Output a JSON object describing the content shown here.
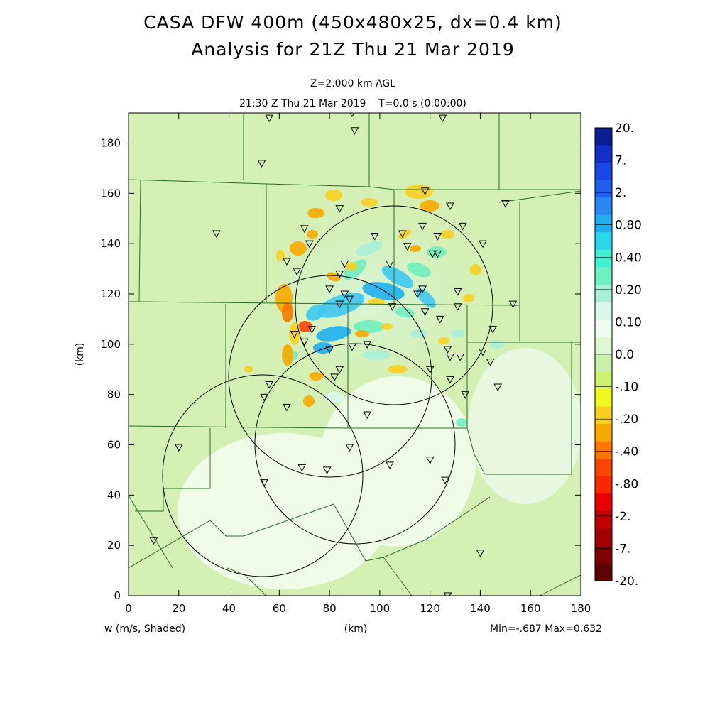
{
  "chart_data": {
    "type": "heatmap",
    "title_lines": [
      "CASA DFW 400m (450x480x25, dx=0.4 km)",
      "Analysis for 21Z Thu 21 Mar 2019"
    ],
    "subtitle_lines": [
      "Z=2.000 km AGL",
      "21:30 Z Thu 21 Mar 2019    T=0.0 s (0:00:00)"
    ],
    "xlabel": "(km)",
    "ylabel": "(km)",
    "field_label": "w (m/s, Shaded)",
    "minmax_label": "Min=-.687 Max=0.632",
    "xlim": [
      0,
      180
    ],
    "ylim": [
      0,
      192
    ],
    "x_ticks": [
      0,
      20,
      40,
      60,
      80,
      100,
      120,
      140,
      160,
      180
    ],
    "y_ticks": [
      0,
      20,
      40,
      60,
      80,
      100,
      120,
      140,
      160,
      180
    ],
    "colorbar": {
      "labels": [
        "20.",
        "7.",
        "2.",
        "0.80",
        "0.40",
        "0.20",
        "0.10",
        "0.0",
        "-.10",
        "-.20",
        "-.40",
        "-.80",
        "-2.",
        "-7.",
        "-20."
      ],
      "colors": [
        "#0a1f8f",
        "#1030c8",
        "#1848e8",
        "#2060f0",
        "#2888f0",
        "#20b0f0",
        "#28d8e8",
        "#40f0d0",
        "#70f0c0",
        "#a8f0d8",
        "#d8f8ec",
        "#f0fcf0",
        "#e0f8d0",
        "#c8f0a8",
        "#d0f070",
        "#f0f820",
        "#f8d020",
        "#f8a800",
        "#f87800",
        "#f84800",
        "#f82800",
        "#e80000",
        "#c00000",
        "#a00000",
        "#800000",
        "#600000"
      ]
    },
    "radar_range_rings": [
      {
        "center": [
          105.5,
          115.5
        ],
        "radius": 39.5
      },
      {
        "center": [
          80.5,
          87.5
        ],
        "radius": 40
      },
      {
        "center": [
          98,
          60.5
        ],
        "radius": 40
      },
      {
        "center": [
          53.5,
          47.5
        ],
        "radius": 40
      }
    ],
    "station_markers": [
      [
        56,
        190
      ],
      [
        89,
        192
      ],
      [
        90,
        185
      ],
      [
        125,
        190
      ],
      [
        53,
        172
      ],
      [
        35,
        144
      ],
      [
        84,
        154
      ],
      [
        118,
        161
      ],
      [
        128,
        155
      ],
      [
        150,
        156
      ],
      [
        70,
        146
      ],
      [
        72,
        140
      ],
      [
        63,
        133
      ],
      [
        98,
        143
      ],
      [
        109,
        144
      ],
      [
        117,
        147
      ],
      [
        123,
        143
      ],
      [
        133,
        147
      ],
      [
        141,
        140
      ],
      [
        111,
        139
      ],
      [
        121,
        136
      ],
      [
        123,
        136
      ],
      [
        67,
        129
      ],
      [
        84,
        128
      ],
      [
        86,
        132
      ],
      [
        104,
        132
      ],
      [
        80,
        122
      ],
      [
        86,
        120
      ],
      [
        88,
        118
      ],
      [
        84,
        116
      ],
      [
        115,
        120
      ],
      [
        117,
        122
      ],
      [
        131,
        121
      ],
      [
        153,
        116
      ],
      [
        105,
        115
      ],
      [
        118,
        113
      ],
      [
        124,
        110
      ],
      [
        131,
        115
      ],
      [
        145,
        106
      ],
      [
        66,
        104
      ],
      [
        70,
        101
      ],
      [
        73,
        106
      ],
      [
        89,
        99
      ],
      [
        95,
        100
      ],
      [
        80,
        98
      ],
      [
        127,
        98
      ],
      [
        141,
        97
      ],
      [
        84,
        90
      ],
      [
        82,
        87
      ],
      [
        120,
        90
      ],
      [
        128,
        95
      ],
      [
        132,
        95
      ],
      [
        144,
        93
      ],
      [
        147,
        83
      ],
      [
        128,
        86
      ],
      [
        56,
        84
      ],
      [
        54,
        79
      ],
      [
        63,
        75
      ],
      [
        134,
        80
      ],
      [
        95,
        72
      ],
      [
        20,
        59
      ],
      [
        88,
        59
      ],
      [
        69,
        51
      ],
      [
        79,
        50
      ],
      [
        104,
        52
      ],
      [
        120,
        54
      ],
      [
        126,
        46
      ],
      [
        54,
        45
      ],
      [
        10,
        22
      ],
      [
        140,
        17
      ],
      [
        127,
        0
      ]
    ]
  }
}
